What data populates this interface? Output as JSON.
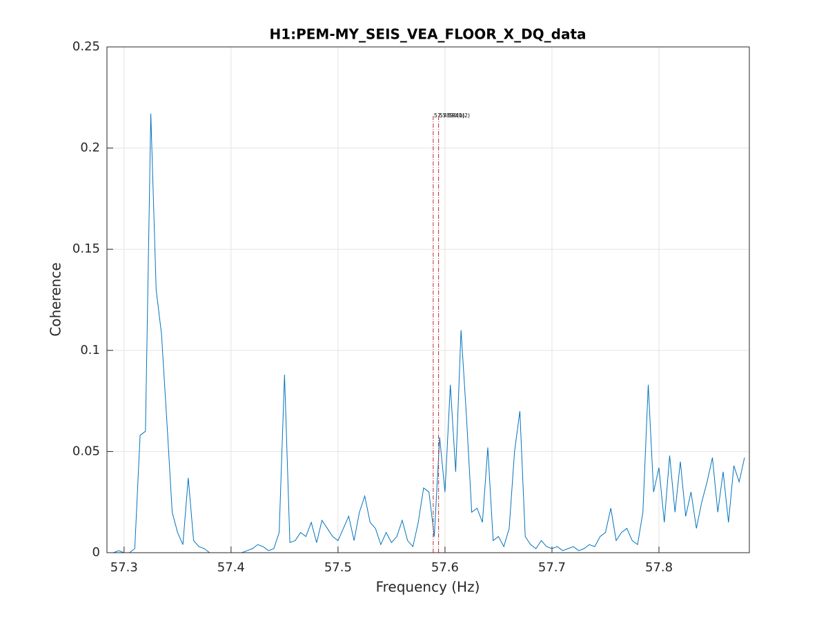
{
  "chart_data": {
    "type": "line",
    "title": "H1:PEM-MY_SEIS_VEA_FLOOR_X_DQ_data",
    "xlabel": "Frequency (Hz)",
    "ylabel": "Coherence",
    "color": "#0072bd",
    "marker_color": "#c0272d",
    "x": [
      57.285,
      57.29,
      57.295,
      57.3,
      57.305,
      57.31,
      57.315,
      57.32,
      57.325,
      57.33,
      57.335,
      57.34,
      57.345,
      57.35,
      57.355,
      57.36,
      57.365,
      57.37,
      57.375,
      57.38,
      57.385,
      57.39,
      57.395,
      57.4,
      57.405,
      57.41,
      57.415,
      57.42,
      57.425,
      57.43,
      57.435,
      57.44,
      57.445,
      57.45,
      57.455,
      57.46,
      57.465,
      57.47,
      57.475,
      57.48,
      57.485,
      57.49,
      57.495,
      57.5,
      57.505,
      57.51,
      57.515,
      57.52,
      57.525,
      57.53,
      57.535,
      57.54,
      57.545,
      57.55,
      57.555,
      57.56,
      57.565,
      57.57,
      57.575,
      57.58,
      57.585,
      57.59,
      57.595,
      57.6,
      57.605,
      57.61,
      57.615,
      57.62,
      57.625,
      57.63,
      57.635,
      57.64,
      57.645,
      57.65,
      57.655,
      57.66,
      57.665,
      57.67,
      57.675,
      57.68,
      57.685,
      57.69,
      57.695,
      57.7,
      57.705,
      57.71,
      57.715,
      57.72,
      57.725,
      57.73,
      57.735,
      57.74,
      57.745,
      57.75,
      57.755,
      57.76,
      57.765,
      57.77,
      57.775,
      57.78,
      57.785,
      57.79,
      57.795,
      57.8,
      57.805,
      57.81,
      57.815,
      57.82,
      57.825,
      57.83,
      57.835,
      57.84,
      57.845,
      57.85,
      57.855,
      57.86,
      57.865,
      57.87,
      57.875,
      57.88
    ],
    "values": [
      0,
      0,
      0.001,
      0,
      0,
      0.002,
      0.058,
      0.06,
      0.217,
      0.13,
      0.108,
      0.065,
      0.02,
      0.01,
      0.004,
      0.037,
      0.006,
      0.003,
      0.002,
      0,
      0,
      0,
      0,
      0,
      0,
      0,
      0.001,
      0.002,
      0.004,
      0.003,
      0.001,
      0.002,
      0.01,
      0.088,
      0.005,
      0.006,
      0.01,
      0.008,
      0.015,
      0.005,
      0.016,
      0.012,
      0.008,
      0.006,
      0.012,
      0.018,
      0.006,
      0.02,
      0.028,
      0.015,
      0.012,
      0.004,
      0.01,
      0.005,
      0.008,
      0.016,
      0.006,
      0.003,
      0.015,
      0.032,
      0.03,
      0.008,
      0.057,
      0.03,
      0.083,
      0.04,
      0.11,
      0.068,
      0.02,
      0.022,
      0.015,
      0.052,
      0.006,
      0.008,
      0.003,
      0.012,
      0.05,
      0.07,
      0.008,
      0.004,
      0.002,
      0.006,
      0.003,
      0.002,
      0.003,
      0.001,
      0.002,
      0.003,
      0.001,
      0.002,
      0.004,
      0.003,
      0.008,
      0.01,
      0.022,
      0.006,
      0.01,
      0.012,
      0.006,
      0.004,
      0.02,
      0.083,
      0.03,
      0.042,
      0.015,
      0.048,
      0.02,
      0.045,
      0.018,
      0.03,
      0.012,
      0.025,
      0.035,
      0.047,
      0.02,
      0.04,
      0.015,
      0.043,
      0.035,
      0.047
    ],
    "markers": [
      {
        "x": 57.589,
        "y": 0.216,
        "label": "57.5890(1)"
      },
      {
        "x": 57.594,
        "y": 0.216,
        "label": "57.5940(2)"
      }
    ],
    "xlim": [
      57.284,
      57.8845
    ],
    "ylim": [
      0,
      0.25
    ],
    "xticks": [
      57.3,
      57.4,
      57.5,
      57.6,
      57.7,
      57.8
    ],
    "yticks": [
      0,
      0.05,
      0.1,
      0.15,
      0.2,
      0.25
    ],
    "grid": true
  }
}
